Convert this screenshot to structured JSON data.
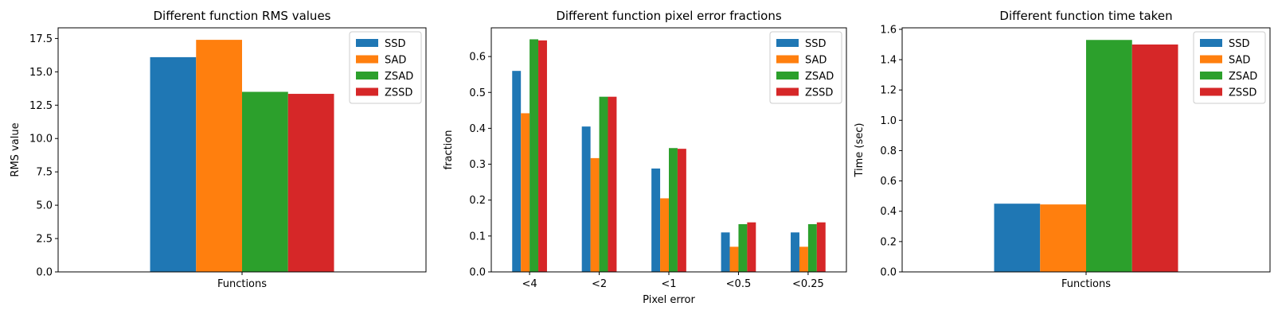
{
  "colors": {
    "SSD": "#1f77b4",
    "SAD": "#ff7f0e",
    "ZSAD": "#2ca02c",
    "ZSSD": "#d62728"
  },
  "chart_data": [
    {
      "type": "bar",
      "title": "Different function RMS values",
      "xlabel": "",
      "ylabel": "RMS value",
      "categories": [
        "Functions"
      ],
      "ylim": [
        0,
        18.3
      ],
      "yticks": [
        0.0,
        2.5,
        5.0,
        7.5,
        10.0,
        12.5,
        15.0,
        17.5
      ],
      "ytick_labels": [
        "0.0",
        "2.5",
        "5.0",
        "7.5",
        "10.0",
        "12.5",
        "15.0",
        "17.5"
      ],
      "legend": "top-right",
      "grid": false,
      "series": [
        {
          "name": "SSD",
          "values": [
            16.1
          ]
        },
        {
          "name": "SAD",
          "values": [
            17.4
          ]
        },
        {
          "name": "ZSAD",
          "values": [
            13.5
          ]
        },
        {
          "name": "ZSSD",
          "values": [
            13.35
          ]
        }
      ]
    },
    {
      "type": "bar",
      "title": "Different function pixel error fractions",
      "xlabel": "Pixel error",
      "ylabel": "fraction",
      "categories": [
        "<4",
        "<2",
        "<1",
        "<0.5",
        "<0.25"
      ],
      "ylim": [
        0,
        0.68
      ],
      "yticks": [
        0.0,
        0.1,
        0.2,
        0.3,
        0.4,
        0.5,
        0.6
      ],
      "ytick_labels": [
        "0.0",
        "0.1",
        "0.2",
        "0.3",
        "0.4",
        "0.5",
        "0.6"
      ],
      "legend": "top-right",
      "grid": false,
      "series": [
        {
          "name": "SSD",
          "values": [
            0.56,
            0.405,
            0.288,
            0.11,
            0.11
          ]
        },
        {
          "name": "SAD",
          "values": [
            0.442,
            0.317,
            0.205,
            0.07,
            0.07
          ]
        },
        {
          "name": "ZSAD",
          "values": [
            0.648,
            0.488,
            0.345,
            0.133,
            0.133
          ]
        },
        {
          "name": "ZSSD",
          "values": [
            0.645,
            0.488,
            0.343,
            0.138,
            0.138
          ]
        }
      ]
    },
    {
      "type": "bar",
      "title": "Different function time taken",
      "xlabel": "",
      "ylabel": "Time (sec)",
      "categories": [
        "Functions"
      ],
      "ylim": [
        0,
        1.61
      ],
      "yticks": [
        0.0,
        0.2,
        0.4,
        0.6,
        0.8,
        1.0,
        1.2,
        1.4,
        1.6
      ],
      "ytick_labels": [
        "0.0",
        "0.2",
        "0.4",
        "0.6",
        "0.8",
        "1.0",
        "1.2",
        "1.4",
        "1.6"
      ],
      "legend": "top-right",
      "grid": false,
      "series": [
        {
          "name": "SSD",
          "values": [
            0.45
          ]
        },
        {
          "name": "SAD",
          "values": [
            0.445
          ]
        },
        {
          "name": "ZSAD",
          "values": [
            1.53
          ]
        },
        {
          "name": "ZSSD",
          "values": [
            1.5
          ]
        }
      ]
    }
  ]
}
